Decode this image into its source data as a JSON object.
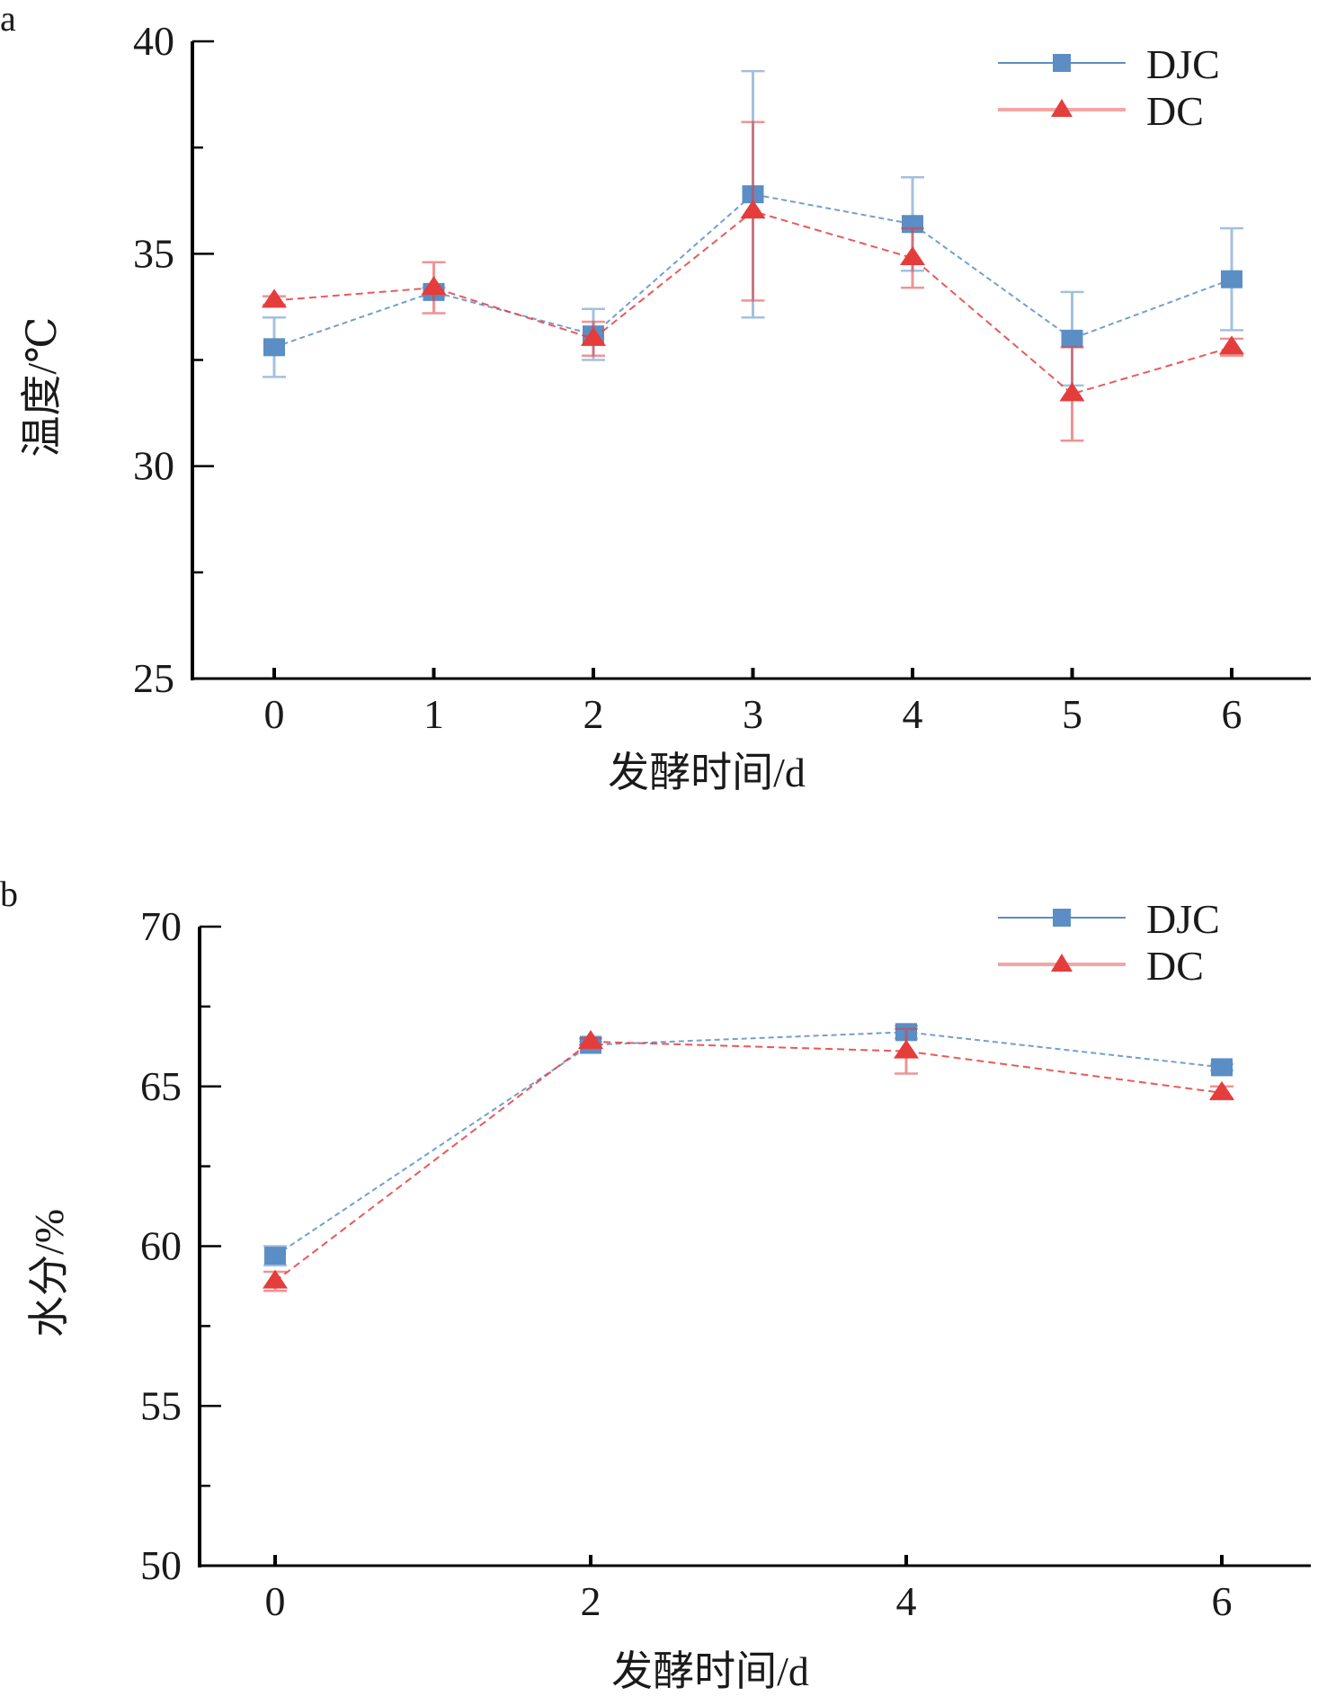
{
  "chart_data": [
    {
      "panel": "a",
      "type": "line",
      "title": "",
      "xlabel": "发酵时间/d",
      "ylabel": "温度/℃",
      "x": [
        0,
        1,
        2,
        3,
        4,
        5,
        6
      ],
      "xticks": [
        "0",
        "1",
        "2",
        "3",
        "4",
        "5",
        "6"
      ],
      "yticks": [
        "25",
        "30",
        "35",
        "40"
      ],
      "ylim": [
        25,
        40
      ],
      "xlim": [
        -0.5,
        6.5
      ],
      "grid": false,
      "legend_position": "top-right",
      "series": [
        {
          "name": "DJC",
          "marker": "square",
          "color": "#5b8ec4",
          "values": [
            32.8,
            34.1,
            33.1,
            36.4,
            35.7,
            33.0,
            34.4
          ],
          "errors": [
            0.7,
            0.1,
            0.6,
            2.9,
            1.1,
            1.1,
            1.2
          ]
        },
        {
          "name": "DC",
          "marker": "triangle",
          "color": "#e53c3c",
          "values": [
            33.9,
            34.2,
            33.0,
            36.0,
            34.9,
            31.7,
            32.8
          ],
          "errors": [
            0.1,
            0.6,
            0.4,
            2.1,
            0.7,
            1.1,
            0.2
          ]
        }
      ]
    },
    {
      "panel": "b",
      "type": "line",
      "title": "",
      "xlabel": "发酵时间/d",
      "ylabel": "水分/%",
      "x": [
        0,
        2,
        4,
        6
      ],
      "xticks": [
        "0",
        "2",
        "4",
        "6"
      ],
      "yticks": [
        "50",
        "55",
        "60",
        "65",
        "70"
      ],
      "ylim": [
        50,
        70
      ],
      "xlim": [
        -0.3,
        6.5
      ],
      "grid": false,
      "legend_position": "top-right",
      "series": [
        {
          "name": "DJC",
          "marker": "square",
          "color": "#5b8ec4",
          "values": [
            59.7,
            66.3,
            66.7,
            65.6
          ],
          "errors": [
            0.3,
            0.1,
            0.2,
            0.1
          ]
        },
        {
          "name": "DC",
          "marker": "triangle",
          "color": "#e53c3c",
          "values": [
            58.9,
            66.4,
            66.1,
            64.8
          ],
          "errors": [
            0.3,
            0.1,
            0.7,
            0.2
          ]
        }
      ]
    }
  ]
}
